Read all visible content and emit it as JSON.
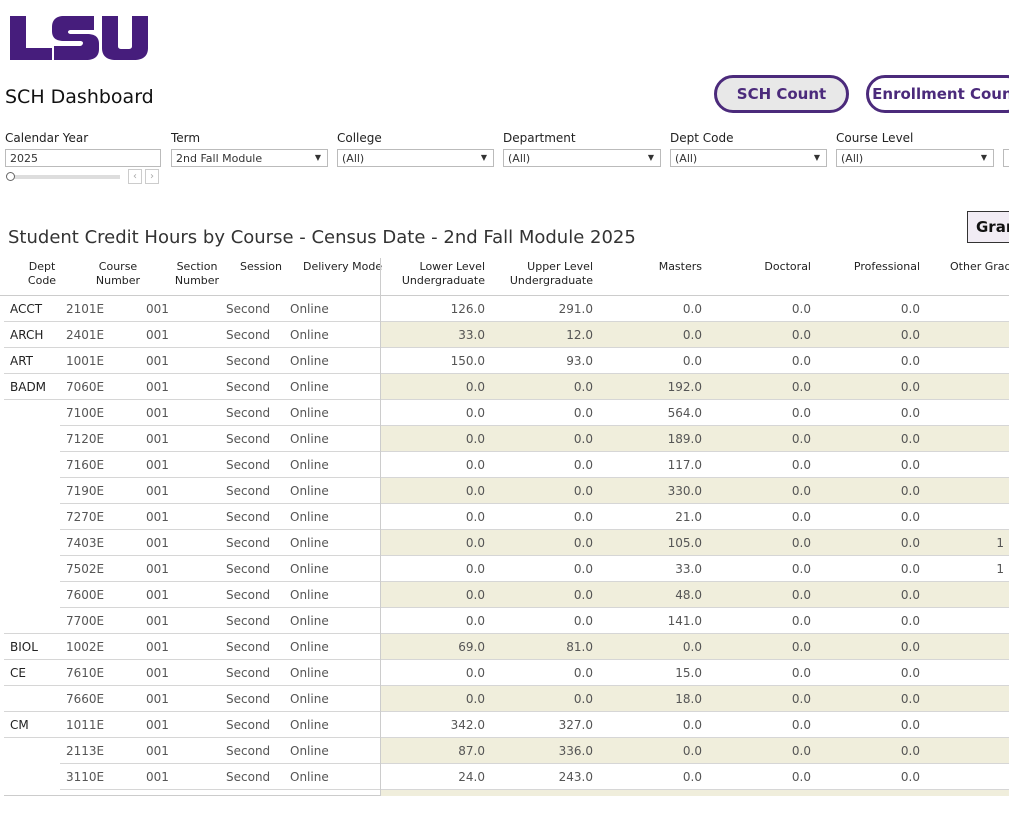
{
  "logo": {
    "text": "LSU",
    "color": "#461d7c"
  },
  "header": {
    "title": "SCH Dashboard",
    "buttons": [
      "SCH Count",
      "Enrollment Count"
    ]
  },
  "filters": [
    {
      "label": "Calendar Year",
      "value": "2025"
    },
    {
      "label": "Term",
      "value": "2nd Fall Module"
    },
    {
      "label": "College",
      "value": "(All)"
    },
    {
      "label": "Department",
      "value": "(All)"
    },
    {
      "label": "Dept Code",
      "value": "(All)"
    },
    {
      "label": "Course Level",
      "value": "(All)"
    }
  ],
  "table": {
    "title": "Student Credit Hours by Course - Census Date - 2nd Fall Module 2025",
    "grand_button": "Gran",
    "headers": [
      "Dept Code",
      "Course Number",
      "Section Number",
      "Session",
      "Delivery Mode",
      "Lower Level Undergraduate",
      "Upper Level Undergraduate",
      "Masters",
      "Doctoral",
      "Professional",
      "Other Gradu"
    ],
    "band_color": "#f0eedc",
    "rows": [
      [
        "ACCT",
        "2101E",
        "001",
        "Second",
        "Online",
        "126.0",
        "291.0",
        "0.0",
        "0.0",
        "0.0",
        ""
      ],
      [
        "ARCH",
        "2401E",
        "001",
        "Second",
        "Online",
        "33.0",
        "12.0",
        "0.0",
        "0.0",
        "0.0",
        ""
      ],
      [
        "ART",
        "1001E",
        "001",
        "Second",
        "Online",
        "150.0",
        "93.0",
        "0.0",
        "0.0",
        "0.0",
        ""
      ],
      [
        "BADM",
        "7060E",
        "001",
        "Second",
        "Online",
        "0.0",
        "0.0",
        "192.0",
        "0.0",
        "0.0",
        ""
      ],
      [
        "",
        "7100E",
        "001",
        "Second",
        "Online",
        "0.0",
        "0.0",
        "564.0",
        "0.0",
        "0.0",
        ""
      ],
      [
        "",
        "7120E",
        "001",
        "Second",
        "Online",
        "0.0",
        "0.0",
        "189.0",
        "0.0",
        "0.0",
        ""
      ],
      [
        "",
        "7160E",
        "001",
        "Second",
        "Online",
        "0.0",
        "0.0",
        "117.0",
        "0.0",
        "0.0",
        ""
      ],
      [
        "",
        "7190E",
        "001",
        "Second",
        "Online",
        "0.0",
        "0.0",
        "330.0",
        "0.0",
        "0.0",
        ""
      ],
      [
        "",
        "7270E",
        "001",
        "Second",
        "Online",
        "0.0",
        "0.0",
        "21.0",
        "0.0",
        "0.0",
        ""
      ],
      [
        "",
        "7403E",
        "001",
        "Second",
        "Online",
        "0.0",
        "0.0",
        "105.0",
        "0.0",
        "0.0",
        "1"
      ],
      [
        "",
        "7502E",
        "001",
        "Second",
        "Online",
        "0.0",
        "0.0",
        "33.0",
        "0.0",
        "0.0",
        "1"
      ],
      [
        "",
        "7600E",
        "001",
        "Second",
        "Online",
        "0.0",
        "0.0",
        "48.0",
        "0.0",
        "0.0",
        ""
      ],
      [
        "",
        "7700E",
        "001",
        "Second",
        "Online",
        "0.0",
        "0.0",
        "141.0",
        "0.0",
        "0.0",
        ""
      ],
      [
        "BIOL",
        "1002E",
        "001",
        "Second",
        "Online",
        "69.0",
        "81.0",
        "0.0",
        "0.0",
        "0.0",
        ""
      ],
      [
        "CE",
        "7610E",
        "001",
        "Second",
        "Online",
        "0.0",
        "0.0",
        "15.0",
        "0.0",
        "0.0",
        ""
      ],
      [
        "",
        "7660E",
        "001",
        "Second",
        "Online",
        "0.0",
        "0.0",
        "18.0",
        "0.0",
        "0.0",
        ""
      ],
      [
        "CM",
        "1011E",
        "001",
        "Second",
        "Online",
        "342.0",
        "327.0",
        "0.0",
        "0.0",
        "0.0",
        ""
      ],
      [
        "",
        "2113E",
        "001",
        "Second",
        "Online",
        "87.0",
        "336.0",
        "0.0",
        "0.0",
        "0.0",
        ""
      ],
      [
        "",
        "3110E",
        "001",
        "Second",
        "Online",
        "24.0",
        "243.0",
        "0.0",
        "0.0",
        "0.0",
        ""
      ]
    ]
  }
}
